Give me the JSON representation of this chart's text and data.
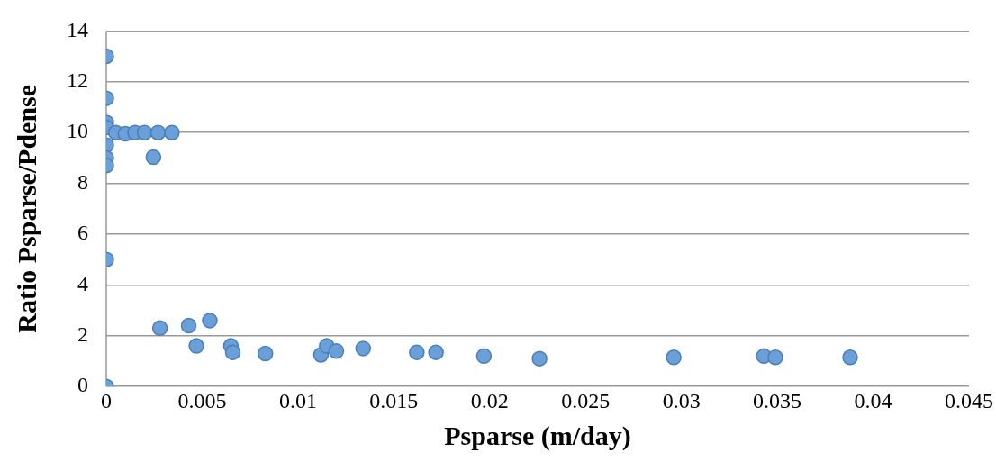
{
  "chart_data": {
    "type": "scatter",
    "xlabel": "Psparse (m/day)",
    "ylabel": "Ratio Psparse/Pdense",
    "x": [
      0,
      0,
      0,
      0,
      0,
      0,
      0,
      0,
      0,
      0.0005,
      0.001,
      0.0015,
      0.002,
      0.0027,
      0.00342,
      0.00246,
      0.0028,
      0.0043,
      0.0054,
      0.0047,
      0.0065,
      0.0066,
      0.0083,
      0.0112,
      0.0115,
      0.012,
      0.0134,
      0.0162,
      0.0172,
      0.0197,
      0.0226,
      0.0296,
      0.0343,
      0.0349,
      0.0388
    ],
    "values": [
      13,
      11.35,
      10.4,
      10.2,
      9.5,
      9.0,
      8.7,
      5.0,
      0,
      10.0,
      9.95,
      10.0,
      10.0,
      10.0,
      10.0,
      9.03,
      2.3,
      2.4,
      2.6,
      1.6,
      1.6,
      1.35,
      1.3,
      1.25,
      1.6,
      1.4,
      1.5,
      1.35,
      1.35,
      1.2,
      1.1,
      1.15,
      1.2,
      1.15,
      1.15
    ],
    "color": "#6a9fd8",
    "marker": "circle",
    "xlim": [
      0,
      0.045
    ],
    "xticks": [
      0,
      0.005,
      0.01,
      0.015,
      0.02,
      0.025,
      0.03,
      0.035,
      0.04,
      0.045
    ],
    "ylim": [
      0,
      14
    ],
    "yticks": [
      0,
      2,
      4,
      6,
      8,
      10,
      12,
      14
    ],
    "grid": "y",
    "legend": false
  }
}
